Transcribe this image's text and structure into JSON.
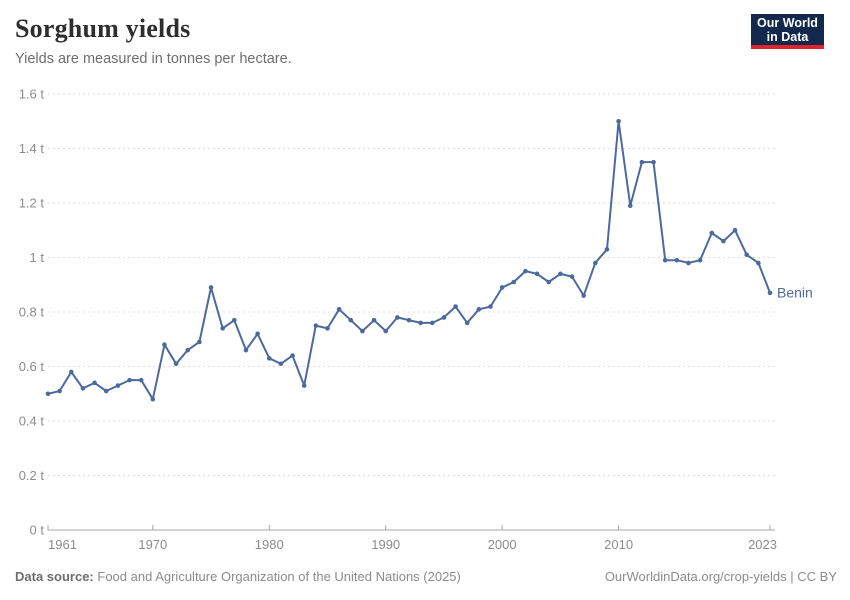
{
  "header": {
    "title": "Sorghum yields",
    "subtitle": "Yields are measured in tonnes per hectare."
  },
  "logo": {
    "line1": "Our World",
    "line2": "in Data",
    "bg_color": "#12294d",
    "accent_color": "#e0232d"
  },
  "chart_data": {
    "type": "line",
    "title": "Sorghum yields",
    "ylabel": "tonnes per hectare",
    "unit": "t",
    "ylim": [
      0,
      1.6
    ],
    "xlim": [
      1961,
      2023
    ],
    "y_ticks": [
      0,
      0.2,
      0.4,
      0.6,
      0.8,
      1,
      1.2,
      1.4,
      1.6
    ],
    "x_ticks": [
      1961,
      1970,
      1980,
      1990,
      2000,
      2010,
      2023
    ],
    "grid": "dashed-horizontal",
    "legend": "end-of-line-label",
    "series": [
      {
        "name": "Benin",
        "color": "#4c6a9c",
        "x": [
          1961,
          1962,
          1963,
          1964,
          1965,
          1966,
          1967,
          1968,
          1969,
          1970,
          1971,
          1972,
          1973,
          1974,
          1975,
          1976,
          1977,
          1978,
          1979,
          1980,
          1981,
          1982,
          1983,
          1984,
          1985,
          1986,
          1987,
          1988,
          1989,
          1990,
          1991,
          1992,
          1993,
          1994,
          1995,
          1996,
          1997,
          1998,
          1999,
          2000,
          2001,
          2002,
          2003,
          2004,
          2005,
          2006,
          2007,
          2008,
          2009,
          2010,
          2011,
          2012,
          2013,
          2014,
          2015,
          2016,
          2017,
          2018,
          2019,
          2020,
          2021,
          2022,
          2023
        ],
        "values": [
          0.5,
          0.51,
          0.58,
          0.52,
          0.54,
          0.51,
          0.53,
          0.55,
          0.55,
          0.48,
          0.68,
          0.61,
          0.66,
          0.69,
          0.89,
          0.74,
          0.77,
          0.66,
          0.72,
          0.63,
          0.61,
          0.64,
          0.53,
          0.75,
          0.74,
          0.81,
          0.77,
          0.73,
          0.77,
          0.73,
          0.78,
          0.77,
          0.76,
          0.76,
          0.78,
          0.82,
          0.76,
          0.81,
          0.82,
          0.89,
          0.91,
          0.95,
          0.94,
          0.91,
          0.94,
          0.93,
          0.86,
          0.98,
          1.03,
          1.5,
          1.19,
          1.35,
          1.35,
          0.99,
          0.99,
          0.98,
          0.99,
          1.09,
          1.06,
          1.1,
          1.01,
          0.98,
          0.87
        ]
      }
    ]
  },
  "footer": {
    "source_label": "Data source:",
    "source": "Food and Agriculture Organization of the United Nations (2025)",
    "credit_url": "OurWorldinData.org/crop-yields",
    "credit_sep": " | ",
    "credit_license": "CC BY"
  }
}
